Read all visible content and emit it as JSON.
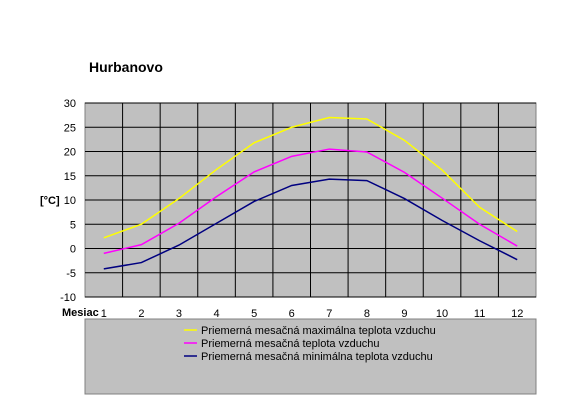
{
  "chart_data": {
    "type": "line",
    "title": "Hurbanovo",
    "xlabel": "Mesiac",
    "ylabel": "[°C]",
    "x": [
      1,
      2,
      3,
      4,
      5,
      6,
      7,
      8,
      9,
      10,
      11,
      12
    ],
    "ylim": [
      -10,
      30
    ],
    "yticks": [
      -10,
      -5,
      0,
      5,
      10,
      15,
      20,
      25,
      30
    ],
    "grid": true,
    "legend_position": "bottom",
    "plot_background": "#c0c0c0",
    "series": [
      {
        "name": "Priemerná mesačná maximálna teplota vzduchu",
        "color": "#ffff00",
        "values": [
          2.2,
          5.0,
          10.3,
          16.3,
          21.8,
          25.0,
          27.0,
          26.7,
          22.3,
          16.2,
          8.5,
          3.5
        ]
      },
      {
        "name": "Priemerná mesačná teplota vzduchu",
        "color": "#ff00ff",
        "values": [
          -1.0,
          0.8,
          5.2,
          10.7,
          15.8,
          19.0,
          20.5,
          19.9,
          15.7,
          10.4,
          5.0,
          0.5
        ]
      },
      {
        "name": "Priemerná mesačná minimálna teplota vzduchu",
        "color": "#000080",
        "values": [
          -4.2,
          -2.9,
          0.7,
          5.2,
          9.7,
          13.0,
          14.3,
          14.0,
          10.3,
          5.8,
          1.6,
          -2.3
        ]
      }
    ]
  }
}
